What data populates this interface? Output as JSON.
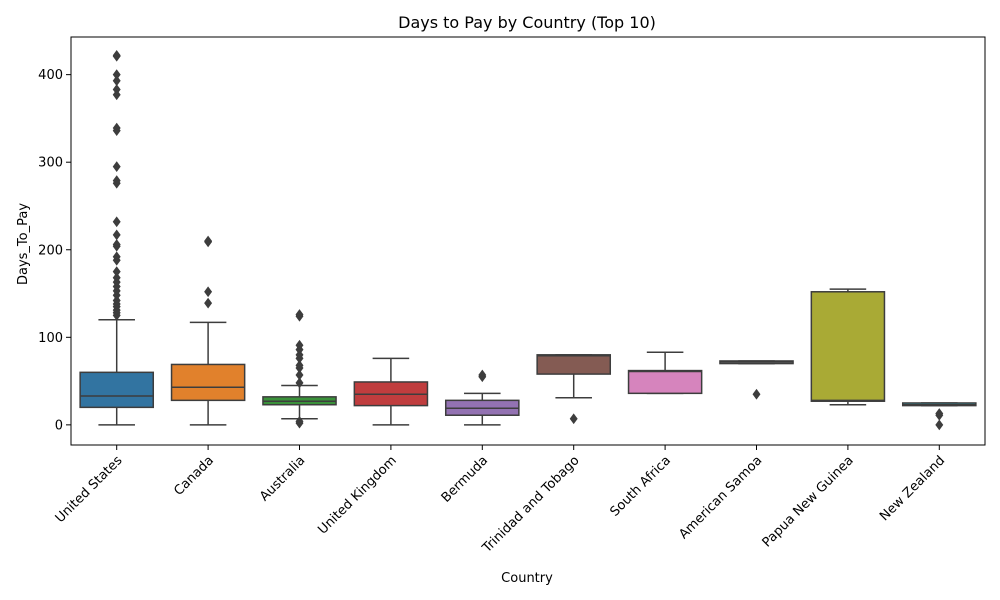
{
  "chart_data": {
    "type": "box",
    "title": "Days to Pay by Country (Top 10)",
    "xlabel": "Country",
    "ylabel": "Days_To_Pay",
    "ylim": [
      -23,
      443
    ],
    "yticks": [
      0,
      100,
      200,
      300,
      400
    ],
    "grid": false,
    "categories": [
      "United States",
      "Canada",
      "Australia",
      "United Kingdom",
      "Bermuda",
      "Trinidad and Tobago",
      "South Africa",
      "American Samoa",
      "Papua New Guinea",
      "New Zealand"
    ],
    "colors": [
      "#3274a1",
      "#e1812c",
      "#3a923a",
      "#c03d3e",
      "#9372b2",
      "#845b53",
      "#d684bd",
      "#7f7f7f",
      "#a9aa35",
      "#2ea3b3"
    ],
    "boxes": [
      {
        "category": "United States",
        "whisker_low": 0,
        "q1": 20,
        "median": 33,
        "q3": 60,
        "whisker_high": 120,
        "outliers": [
          125,
          128,
          131,
          135,
          138,
          142,
          148,
          153,
          158,
          163,
          168,
          175,
          188,
          192,
          204,
          206,
          217,
          232,
          276,
          279,
          295,
          336,
          339,
          377,
          383,
          393,
          400,
          421,
          422
        ]
      },
      {
        "category": "Canada",
        "whisker_low": 0,
        "q1": 28,
        "median": 43,
        "q3": 69,
        "whisker_high": 117,
        "outliers": [
          139,
          152,
          209,
          210
        ]
      },
      {
        "category": "Australia",
        "whisker_low": 7,
        "q1": 23,
        "median": 27,
        "q3": 32,
        "whisker_high": 45,
        "outliers": [
          2,
          4,
          48,
          57,
          65,
          68,
          76,
          80,
          86,
          91,
          124,
          126
        ]
      },
      {
        "category": "United Kingdom",
        "whisker_low": 0,
        "q1": 22,
        "median": 35,
        "q3": 49,
        "whisker_high": 76,
        "outliers": []
      },
      {
        "category": "Bermuda",
        "whisker_low": 0,
        "q1": 11,
        "median": 19,
        "q3": 28,
        "whisker_high": 36,
        "outliers": [
          55,
          57
        ]
      },
      {
        "category": "Trinidad and Tobago",
        "whisker_low": 31,
        "q1": 58,
        "median": 79,
        "q3": 80,
        "whisker_high": 80,
        "outliers": [
          7
        ]
      },
      {
        "category": "South Africa",
        "whisker_low": 36,
        "q1": 36,
        "median": 61,
        "q3": 62,
        "whisker_high": 83,
        "outliers": []
      },
      {
        "category": "American Samoa",
        "whisker_low": 70,
        "q1": 70,
        "median": 72,
        "q3": 73,
        "whisker_high": 73,
        "outliers": [
          35
        ]
      },
      {
        "category": "Papua New Guinea",
        "whisker_low": 23,
        "q1": 27,
        "median": 28,
        "q3": 152,
        "whisker_high": 155,
        "outliers": []
      },
      {
        "category": "New Zealand",
        "whisker_low": 22,
        "q1": 22,
        "median": 23,
        "q3": 25,
        "whisker_high": 25,
        "outliers": [
          0,
          11,
          13
        ]
      }
    ]
  }
}
